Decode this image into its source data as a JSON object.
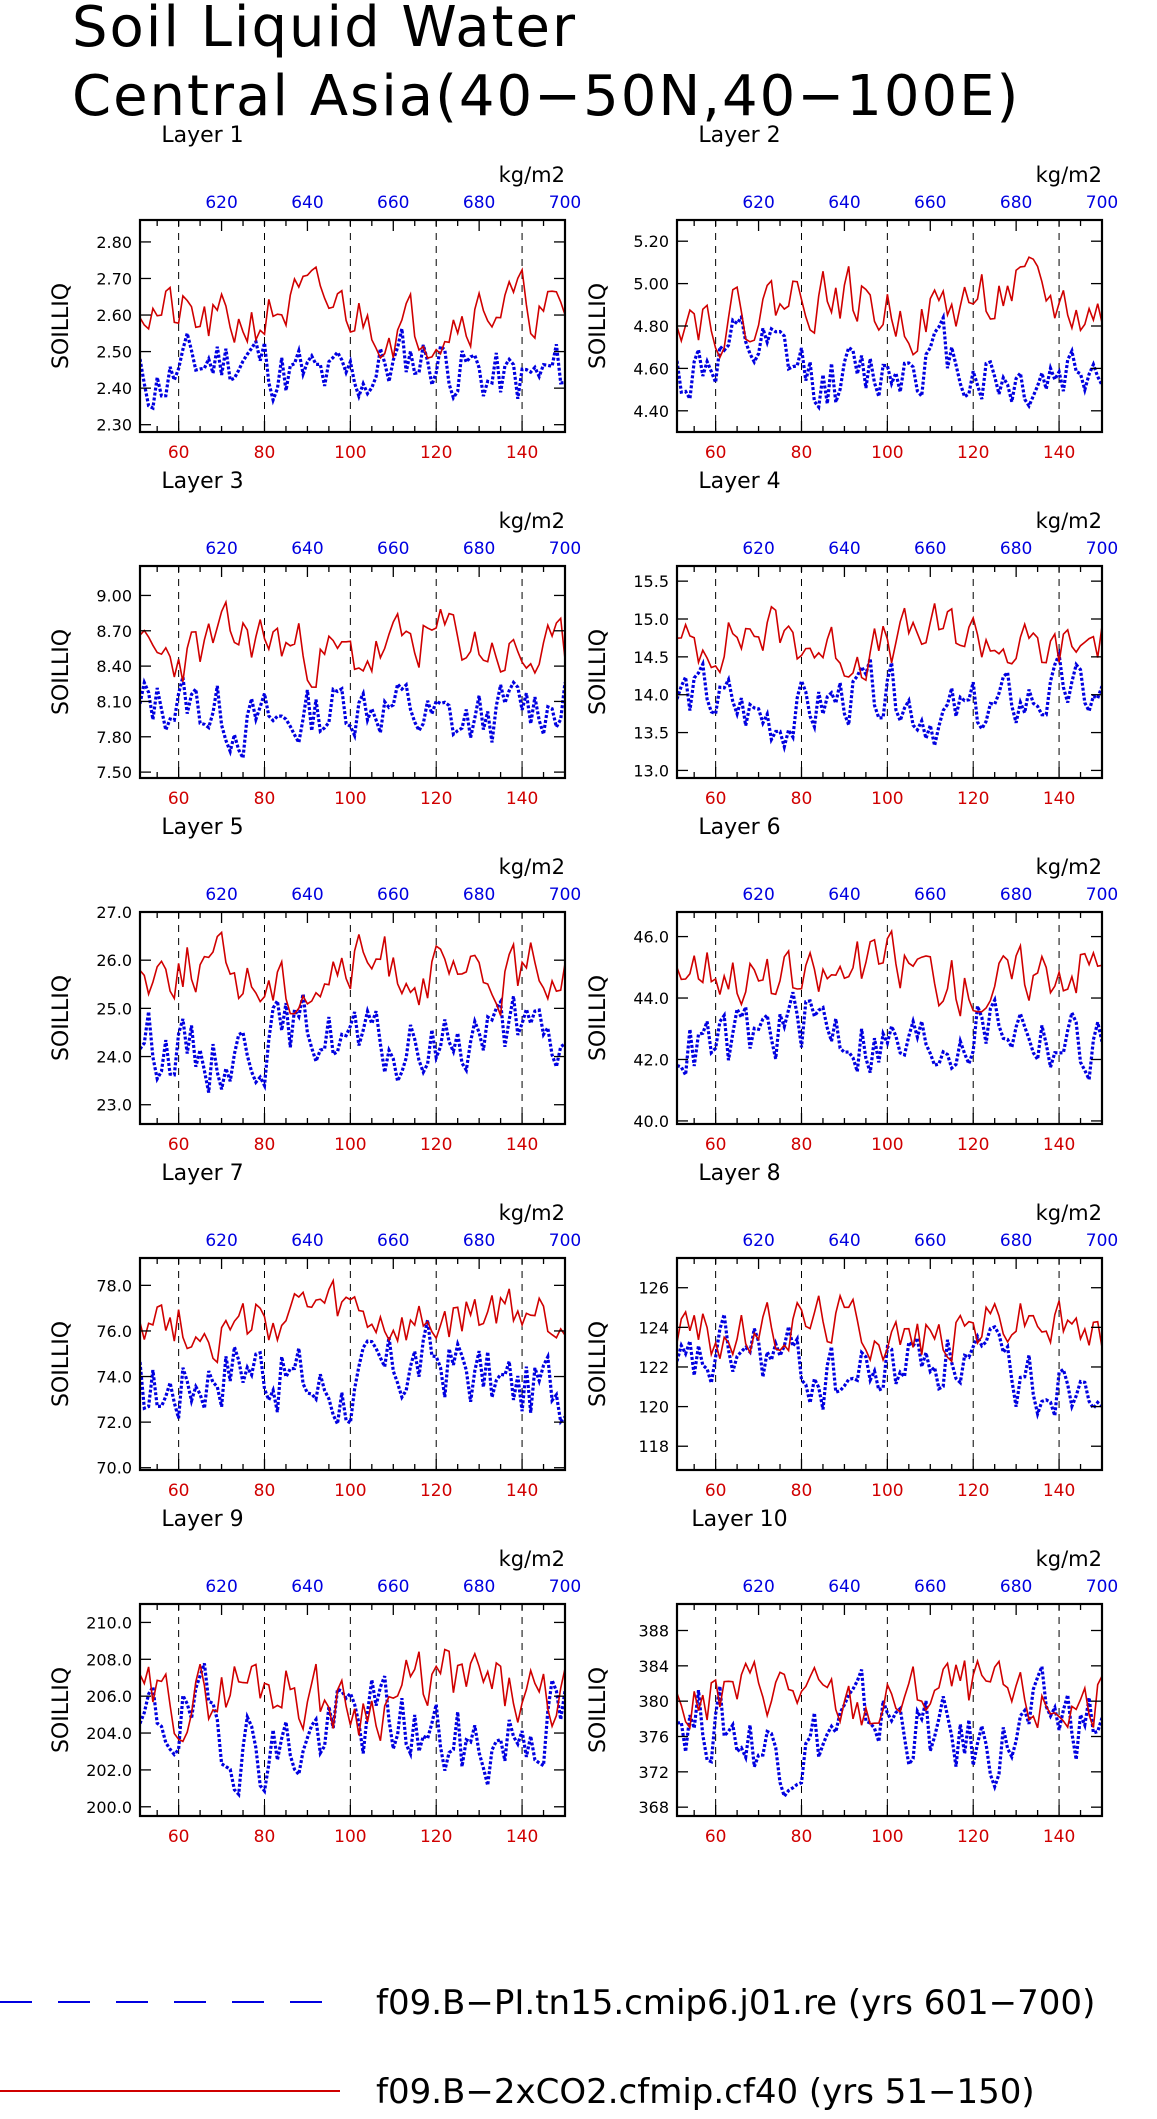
{
  "title": [
    "Soil Liquid Water",
    "Central Asia(40−50N,40−100E)"
  ],
  "legend": [
    {
      "label": "f09.B−PI.tn15.cmip6.j01.re (yrs 601−700)",
      "color": "#0000e0",
      "style": "dashed"
    },
    {
      "label": "f09.B−2xCO2.cfmip.cf40 (yrs 51−150)",
      "color": "#d00000",
      "style": "solid"
    }
  ],
  "colors": {
    "control": "#0000e0",
    "experiment": "#d00000"
  },
  "chart_data": [
    {
      "type": "line",
      "title": "Layer 1",
      "ylabel": "SOILLIQ",
      "unit": "kg/m2",
      "xlabel": "",
      "ylim": [
        2.28,
        2.86
      ],
      "yticks": [
        "2.30",
        "2.40",
        "2.50",
        "2.60",
        "2.70",
        "2.80"
      ],
      "bottom_axis": {
        "range": [
          51,
          150
        ],
        "ticks": [
          60,
          80,
          100,
          120,
          140
        ]
      },
      "top_axis": {
        "range": [
          601,
          700
        ],
        "ticks": [
          620,
          640,
          660,
          680,
          700
        ]
      },
      "series": [
        {
          "period": "yrs 601−700",
          "axis": "top",
          "color": "#0000e0",
          "mean": 2.45,
          "amp": 0.1,
          "seed": 11
        },
        {
          "period": "yrs 51−150",
          "axis": "bottom",
          "color": "#d00000",
          "mean": 2.6,
          "amp": 0.09,
          "seed": 21
        }
      ]
    },
    {
      "type": "line",
      "title": "Layer 2",
      "ylabel": "SOILLIQ",
      "unit": "kg/m2",
      "xlabel": "",
      "ylim": [
        4.3,
        5.3
      ],
      "yticks": [
        "4.40",
        "4.60",
        "4.80",
        "5.00",
        "5.20"
      ],
      "bottom_axis": {
        "range": [
          51,
          150
        ],
        "ticks": [
          60,
          80,
          100,
          120,
          140
        ]
      },
      "top_axis": {
        "range": [
          601,
          700
        ],
        "ticks": [
          620,
          640,
          660,
          680,
          700
        ]
      },
      "series": [
        {
          "period": "yrs 601−700",
          "axis": "top",
          "color": "#0000e0",
          "mean": 4.6,
          "amp": 0.18,
          "seed": 12
        },
        {
          "period": "yrs 51−150",
          "axis": "bottom",
          "color": "#d00000",
          "mean": 4.9,
          "amp": 0.16,
          "seed": 22
        }
      ]
    },
    {
      "type": "line",
      "title": "Layer 3",
      "ylabel": "SOILLIQ",
      "unit": "kg/m2",
      "xlabel": "",
      "ylim": [
        7.45,
        9.25
      ],
      "yticks": [
        "7.50",
        "7.80",
        "8.10",
        "8.40",
        "8.70",
        "9.00"
      ],
      "bottom_axis": {
        "range": [
          51,
          150
        ],
        "ticks": [
          60,
          80,
          100,
          120,
          140
        ]
      },
      "top_axis": {
        "range": [
          601,
          700
        ],
        "ticks": [
          620,
          640,
          660,
          680,
          700
        ]
      },
      "series": [
        {
          "period": "yrs 601−700",
          "axis": "top",
          "color": "#0000e0",
          "mean": 8.0,
          "amp": 0.3,
          "seed": 13
        },
        {
          "period": "yrs 51−150",
          "axis": "bottom",
          "color": "#d00000",
          "mean": 8.55,
          "amp": 0.28,
          "seed": 23
        }
      ]
    },
    {
      "type": "line",
      "title": "Layer 4",
      "ylabel": "SOILLIQ",
      "unit": "kg/m2",
      "xlabel": "",
      "ylim": [
        12.9,
        15.7
      ],
      "yticks": [
        "13.0",
        "13.5",
        "14.0",
        "14.5",
        "15.0",
        "15.5"
      ],
      "bottom_axis": {
        "range": [
          51,
          150
        ],
        "ticks": [
          60,
          80,
          100,
          120,
          140
        ]
      },
      "top_axis": {
        "range": [
          601,
          700
        ],
        "ticks": [
          620,
          640,
          660,
          680,
          700
        ]
      },
      "series": [
        {
          "period": "yrs 601−700",
          "axis": "top",
          "color": "#0000e0",
          "mean": 13.85,
          "amp": 0.45,
          "seed": 14
        },
        {
          "period": "yrs 51−150",
          "axis": "bottom",
          "color": "#d00000",
          "mean": 14.7,
          "amp": 0.4,
          "seed": 24
        }
      ]
    },
    {
      "type": "line",
      "title": "Layer 5",
      "ylabel": "SOILLIQ",
      "unit": "kg/m2",
      "xlabel": "",
      "ylim": [
        22.6,
        27.0
      ],
      "yticks": [
        "23.0",
        "24.0",
        "25.0",
        "26.0",
        "27.0"
      ],
      "bottom_axis": {
        "range": [
          51,
          150
        ],
        "ticks": [
          60,
          80,
          100,
          120,
          140
        ]
      },
      "top_axis": {
        "range": [
          601,
          700
        ],
        "ticks": [
          620,
          640,
          660,
          680,
          700
        ]
      },
      "series": [
        {
          "period": "yrs 601−700",
          "axis": "top",
          "color": "#0000e0",
          "mean": 24.3,
          "amp": 0.8,
          "seed": 15
        },
        {
          "period": "yrs 51−150",
          "axis": "bottom",
          "color": "#d00000",
          "mean": 25.7,
          "amp": 0.7,
          "seed": 25
        }
      ]
    },
    {
      "type": "line",
      "title": "Layer 6",
      "ylabel": "SOILLIQ",
      "unit": "kg/m2",
      "xlabel": "",
      "ylim": [
        39.9,
        46.8
      ],
      "yticks": [
        "40.0",
        "42.0",
        "44.0",
        "46.0"
      ],
      "bottom_axis": {
        "range": [
          51,
          150
        ],
        "ticks": [
          60,
          80,
          100,
          120,
          140
        ]
      },
      "top_axis": {
        "range": [
          601,
          700
        ],
        "ticks": [
          620,
          640,
          660,
          680,
          700
        ]
      },
      "series": [
        {
          "period": "yrs 601−700",
          "axis": "top",
          "color": "#0000e0",
          "mean": 42.8,
          "amp": 1.3,
          "seed": 16
        },
        {
          "period": "yrs 51−150",
          "axis": "bottom",
          "color": "#d00000",
          "mean": 44.8,
          "amp": 1.1,
          "seed": 26
        }
      ]
    },
    {
      "type": "line",
      "title": "Layer 7",
      "ylabel": "SOILLIQ",
      "unit": "kg/m2",
      "xlabel": "",
      "ylim": [
        69.9,
        79.2
      ],
      "yticks": [
        "70.0",
        "72.0",
        "74.0",
        "76.0",
        "78.0"
      ],
      "bottom_axis": {
        "range": [
          51,
          150
        ],
        "ticks": [
          60,
          80,
          100,
          120,
          140
        ]
      },
      "top_axis": {
        "range": [
          601,
          700
        ],
        "ticks": [
          620,
          640,
          660,
          680,
          700
        ]
      },
      "series": [
        {
          "period": "yrs 601−700",
          "axis": "top",
          "color": "#0000e0",
          "mean": 74.0,
          "amp": 1.9,
          "seed": 17
        },
        {
          "period": "yrs 51−150",
          "axis": "bottom",
          "color": "#d00000",
          "mean": 76.4,
          "amp": 1.3,
          "seed": 27
        }
      ]
    },
    {
      "type": "line",
      "title": "Layer 8",
      "ylabel": "SOILLIQ",
      "unit": "kg/m2",
      "xlabel": "",
      "ylim": [
        116.8,
        127.5
      ],
      "yticks": [
        "118",
        "120",
        "122",
        "124",
        "126"
      ],
      "bottom_axis": {
        "range": [
          51,
          150
        ],
        "ticks": [
          60,
          80,
          100,
          120,
          140
        ]
      },
      "top_axis": {
        "range": [
          601,
          700
        ],
        "ticks": [
          620,
          640,
          660,
          680,
          700
        ]
      },
      "series": [
        {
          "period": "yrs 601−700",
          "axis": "top",
          "color": "#0000e0",
          "mean": 122.0,
          "amp": 2.0,
          "seed": 18
        },
        {
          "period": "yrs 51−150",
          "axis": "bottom",
          "color": "#d00000",
          "mean": 124.0,
          "amp": 1.5,
          "seed": 28
        }
      ]
    },
    {
      "type": "line",
      "title": "Layer 9",
      "ylabel": "SOILLIQ",
      "unit": "kg/m2",
      "xlabel": "",
      "ylim": [
        199.5,
        211.0
      ],
      "yticks": [
        "200.0",
        "202.0",
        "204.0",
        "206.0",
        "208.0",
        "210.0"
      ],
      "bottom_axis": {
        "range": [
          51,
          150
        ],
        "ticks": [
          60,
          80,
          100,
          120,
          140
        ]
      },
      "top_axis": {
        "range": [
          601,
          700
        ],
        "ticks": [
          620,
          640,
          660,
          680,
          700
        ]
      },
      "series": [
        {
          "period": "yrs 601−700",
          "axis": "top",
          "color": "#0000e0",
          "mean": 204.0,
          "amp": 2.6,
          "seed": 19
        },
        {
          "period": "yrs 51−150",
          "axis": "bottom",
          "color": "#d00000",
          "mean": 206.2,
          "amp": 2.0,
          "seed": 29
        }
      ]
    },
    {
      "type": "line",
      "title": "Layer 10",
      "ylabel": "SOILLIQ",
      "unit": "kg/m2",
      "xlabel": "",
      "ylim": [
        367.0,
        391.0
      ],
      "yticks": [
        "368",
        "372",
        "376",
        "380",
        "384",
        "388"
      ],
      "bottom_axis": {
        "range": [
          51,
          150
        ],
        "ticks": [
          60,
          80,
          100,
          120,
          140
        ]
      },
      "top_axis": {
        "range": [
          601,
          700
        ],
        "ticks": [
          620,
          640,
          660,
          680,
          700
        ]
      },
      "series": [
        {
          "period": "yrs 601−700",
          "axis": "top",
          "color": "#0000e0",
          "mean": 376.5,
          "amp": 5.0,
          "seed": 20
        },
        {
          "period": "yrs 51−150",
          "axis": "bottom",
          "color": "#d00000",
          "mean": 380.5,
          "amp": 3.6,
          "seed": 30
        }
      ]
    }
  ]
}
